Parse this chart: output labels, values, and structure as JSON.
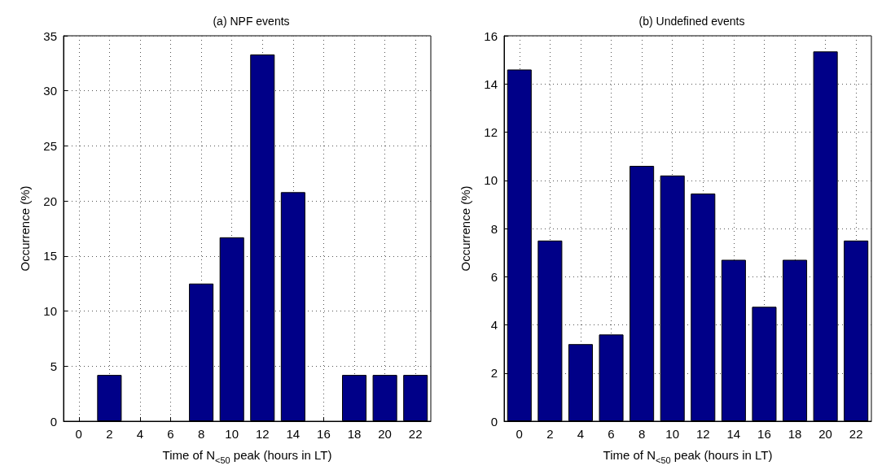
{
  "chart_data": [
    {
      "type": "bar",
      "title": "(a) NPF events",
      "xlabel": "Time of N$_{<50}$ peak (hours in LT)",
      "ylabel": "Occurrence (%)",
      "x": [
        0,
        2,
        4,
        6,
        8,
        10,
        12,
        14,
        16,
        18,
        20,
        22
      ],
      "values": [
        0,
        4.2,
        0,
        0,
        12.5,
        16.7,
        33.3,
        20.8,
        0,
        4.2,
        4.2,
        4.2
      ],
      "color": "#000088",
      "xlim": [
        -1,
        23
      ],
      "xticks": [
        0,
        2,
        4,
        6,
        8,
        10,
        12,
        14,
        16,
        18,
        20,
        22
      ],
      "ylim": [
        0,
        35
      ],
      "yticks": [
        0,
        5,
        10,
        15,
        20,
        25,
        30,
        35
      ],
      "grid": true
    },
    {
      "type": "bar",
      "title": "(b) Undefined events",
      "xlabel": "Time of N$_{<50}$ peak (hours in LT)",
      "ylabel": "Occurrence (%)",
      "x": [
        0,
        2,
        4,
        6,
        8,
        10,
        12,
        14,
        16,
        18,
        20,
        22
      ],
      "values": [
        14.6,
        7.5,
        3.2,
        3.6,
        10.6,
        10.2,
        9.45,
        6.7,
        4.75,
        6.7,
        15.35,
        7.5
      ],
      "color": "#000088",
      "xlim": [
        -1,
        23
      ],
      "xticks": [
        0,
        2,
        4,
        6,
        8,
        10,
        12,
        14,
        16,
        18,
        20,
        22
      ],
      "ylim": [
        0,
        16
      ],
      "yticks": [
        0,
        2,
        4,
        6,
        8,
        10,
        12,
        14,
        16
      ],
      "grid": true
    }
  ]
}
